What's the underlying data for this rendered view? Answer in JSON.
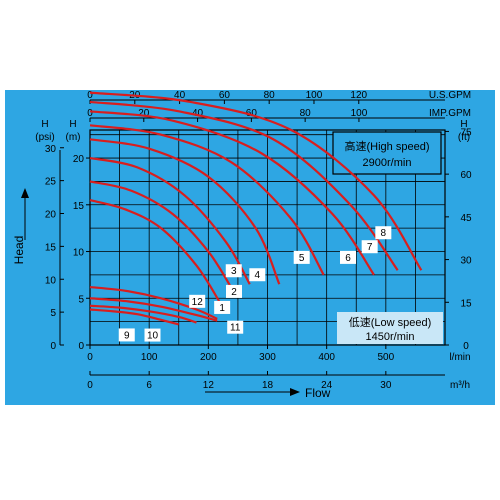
{
  "chart_data": {
    "type": "line",
    "colors": {
      "background": "#2ea6e3",
      "curve": "#d81e1e",
      "grid": "#000000",
      "box": "#ffffff"
    },
    "grid": true,
    "axes": {
      "flow_lmin": {
        "label": "l/min",
        "ticks": [
          "0",
          "100",
          "200",
          "300",
          "400",
          "500"
        ],
        "range": [
          0,
          600
        ]
      },
      "flow_m3h": {
        "label": "m³/h",
        "ticks": [
          "0",
          "6",
          "12",
          "18",
          "24",
          "30"
        ],
        "range": [
          0,
          36
        ]
      },
      "flow_usgpm": {
        "label": "U.S.GPM",
        "ticks": [
          "0",
          "20",
          "40",
          "60",
          "80",
          "100",
          "120"
        ],
        "range": [
          0,
          158.5
        ]
      },
      "flow_impgpm": {
        "label": "IMP.GPM",
        "ticks": [
          "0",
          "20",
          "40",
          "60",
          "80",
          "100"
        ],
        "range": [
          0,
          132
        ]
      },
      "head_m": {
        "label": "H\n(m)",
        "ticks": [
          "0",
          "5",
          "10",
          "15",
          "20"
        ],
        "range": [
          0,
          23
        ]
      },
      "head_psi": {
        "label": "H\n(psi)",
        "ticks": [
          "0",
          "5",
          "10",
          "15",
          "20",
          "25",
          "30"
        ],
        "range": [
          0,
          32.7
        ]
      },
      "head_ft": {
        "label": "H\n(ft)",
        "ticks": [
          "0",
          "15",
          "30",
          "45",
          "60",
          "75"
        ],
        "range": [
          0,
          75.5
        ]
      }
    },
    "xlabel": "Flow",
    "ylabel": "Head",
    "annotations": {
      "high_speed_line1": "高速(High speed)",
      "high_speed_line2": "2900r/min",
      "low_speed_line1": "低速(Low speed)",
      "low_speed_line2": "1450r/min"
    },
    "series": [
      {
        "name": "1",
        "x": [
          0,
          60,
          120,
          180,
          220
        ],
        "y": [
          15.5,
          14.5,
          12.5,
          8.5,
          4.5
        ]
      },
      {
        "name": "2",
        "x": [
          0,
          70,
          140,
          200,
          240
        ],
        "y": [
          17.5,
          16.5,
          14.0,
          10.0,
          6.0
        ]
      },
      {
        "name": "3",
        "x": [
          0,
          80,
          160,
          230,
          270
        ],
        "y": [
          20.0,
          19.0,
          16.0,
          11.0,
          6.5
        ]
      },
      {
        "name": "4",
        "x": [
          0,
          100,
          200,
          280,
          320
        ],
        "y": [
          22.0,
          21.0,
          18.0,
          12.5,
          6.5
        ]
      },
      {
        "name": "5",
        "x": [
          0,
          120,
          240,
          340,
          395
        ],
        "y": [
          23.5,
          22.5,
          19.5,
          13.5,
          7.5
        ]
      },
      {
        "name": "6",
        "x": [
          0,
          140,
          290,
          410,
          480
        ],
        "y": [
          25.0,
          24.0,
          20.5,
          14.0,
          7.5
        ]
      },
      {
        "name": "7",
        "x": [
          0,
          150,
          310,
          440,
          520
        ],
        "y": [
          26.0,
          25.0,
          22.0,
          15.0,
          8.0
        ]
      },
      {
        "name": "8",
        "x": [
          0,
          170,
          340,
          480,
          560
        ],
        "y": [
          27.0,
          26.0,
          23.0,
          16.0,
          8.0
        ]
      },
      {
        "name": "9",
        "x": [
          0,
          40,
          80,
          120,
          150
        ],
        "y": [
          3.8,
          3.6,
          3.3,
          2.7,
          2.2
        ]
      },
      {
        "name": "10",
        "x": [
          0,
          50,
          100,
          150,
          180
        ],
        "y": [
          4.2,
          4.0,
          3.6,
          3.0,
          2.4
        ]
      },
      {
        "name": "11",
        "x": [
          0,
          60,
          120,
          180,
          215
        ],
        "y": [
          5.0,
          4.7,
          4.1,
          3.2,
          2.6
        ]
      },
      {
        "name": "12",
        "x": [
          0,
          60,
          120,
          180,
          215
        ],
        "y": [
          6.2,
          5.8,
          5.0,
          3.8,
          2.8
        ]
      }
    ]
  }
}
